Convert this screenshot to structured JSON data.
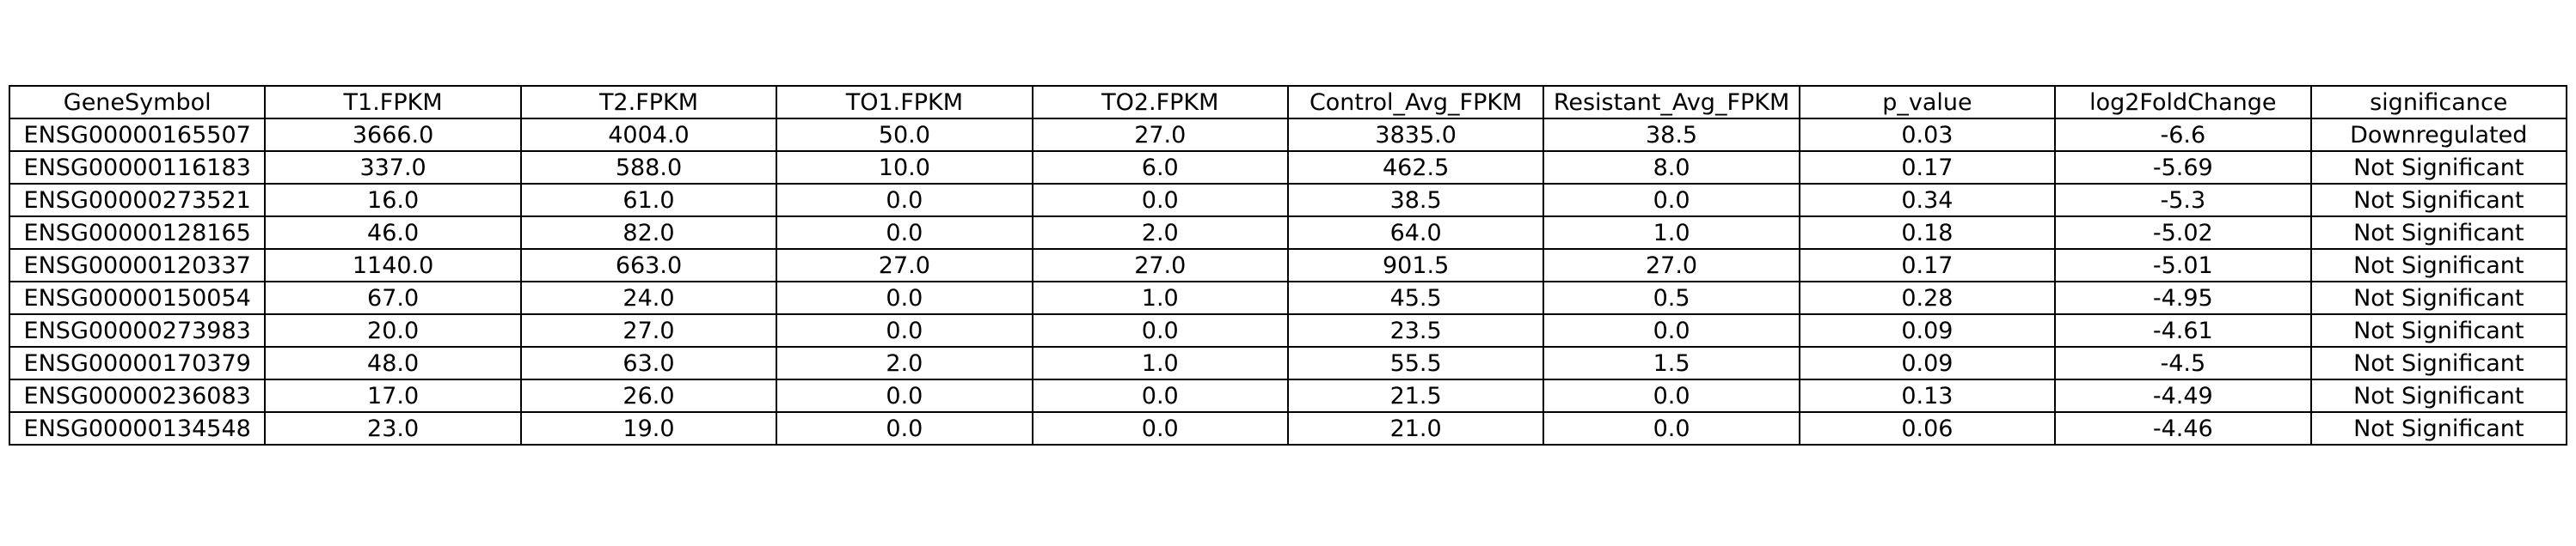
{
  "chart_data": {
    "type": "table",
    "columns": [
      "GeneSymbol",
      "T1.FPKM",
      "T2.FPKM",
      "TO1.FPKM",
      "TO2.FPKM",
      "Control_Avg_FPKM",
      "Resistant_Avg_FPKM",
      "p_value",
      "log2FoldChange",
      "significance"
    ],
    "rows": [
      [
        "ENSG00000165507",
        "3666.0",
        "4004.0",
        "50.0",
        "27.0",
        "3835.0",
        "38.5",
        "0.03",
        "-6.6",
        "Downregulated"
      ],
      [
        "ENSG00000116183",
        "337.0",
        "588.0",
        "10.0",
        "6.0",
        "462.5",
        "8.0",
        "0.17",
        "-5.69",
        "Not Significant"
      ],
      [
        "ENSG00000273521",
        "16.0",
        "61.0",
        "0.0",
        "0.0",
        "38.5",
        "0.0",
        "0.34",
        "-5.3",
        "Not Significant"
      ],
      [
        "ENSG00000128165",
        "46.0",
        "82.0",
        "0.0",
        "2.0",
        "64.0",
        "1.0",
        "0.18",
        "-5.02",
        "Not Significant"
      ],
      [
        "ENSG00000120337",
        "1140.0",
        "663.0",
        "27.0",
        "27.0",
        "901.5",
        "27.0",
        "0.17",
        "-5.01",
        "Not Significant"
      ],
      [
        "ENSG00000150054",
        "67.0",
        "24.0",
        "0.0",
        "1.0",
        "45.5",
        "0.5",
        "0.28",
        "-4.95",
        "Not Significant"
      ],
      [
        "ENSG00000273983",
        "20.0",
        "27.0",
        "0.0",
        "0.0",
        "23.5",
        "0.0",
        "0.09",
        "-4.61",
        "Not Significant"
      ],
      [
        "ENSG00000170379",
        "48.0",
        "63.0",
        "2.0",
        "1.0",
        "55.5",
        "1.5",
        "0.09",
        "-4.5",
        "Not Significant"
      ],
      [
        "ENSG00000236083",
        "17.0",
        "26.0",
        "0.0",
        "0.0",
        "21.5",
        "0.0",
        "0.13",
        "-4.49",
        "Not Significant"
      ],
      [
        "ENSG00000134548",
        "23.0",
        "19.0",
        "0.0",
        "0.0",
        "21.0",
        "0.0",
        "0.06",
        "-4.46",
        "Not Significant"
      ]
    ]
  }
}
